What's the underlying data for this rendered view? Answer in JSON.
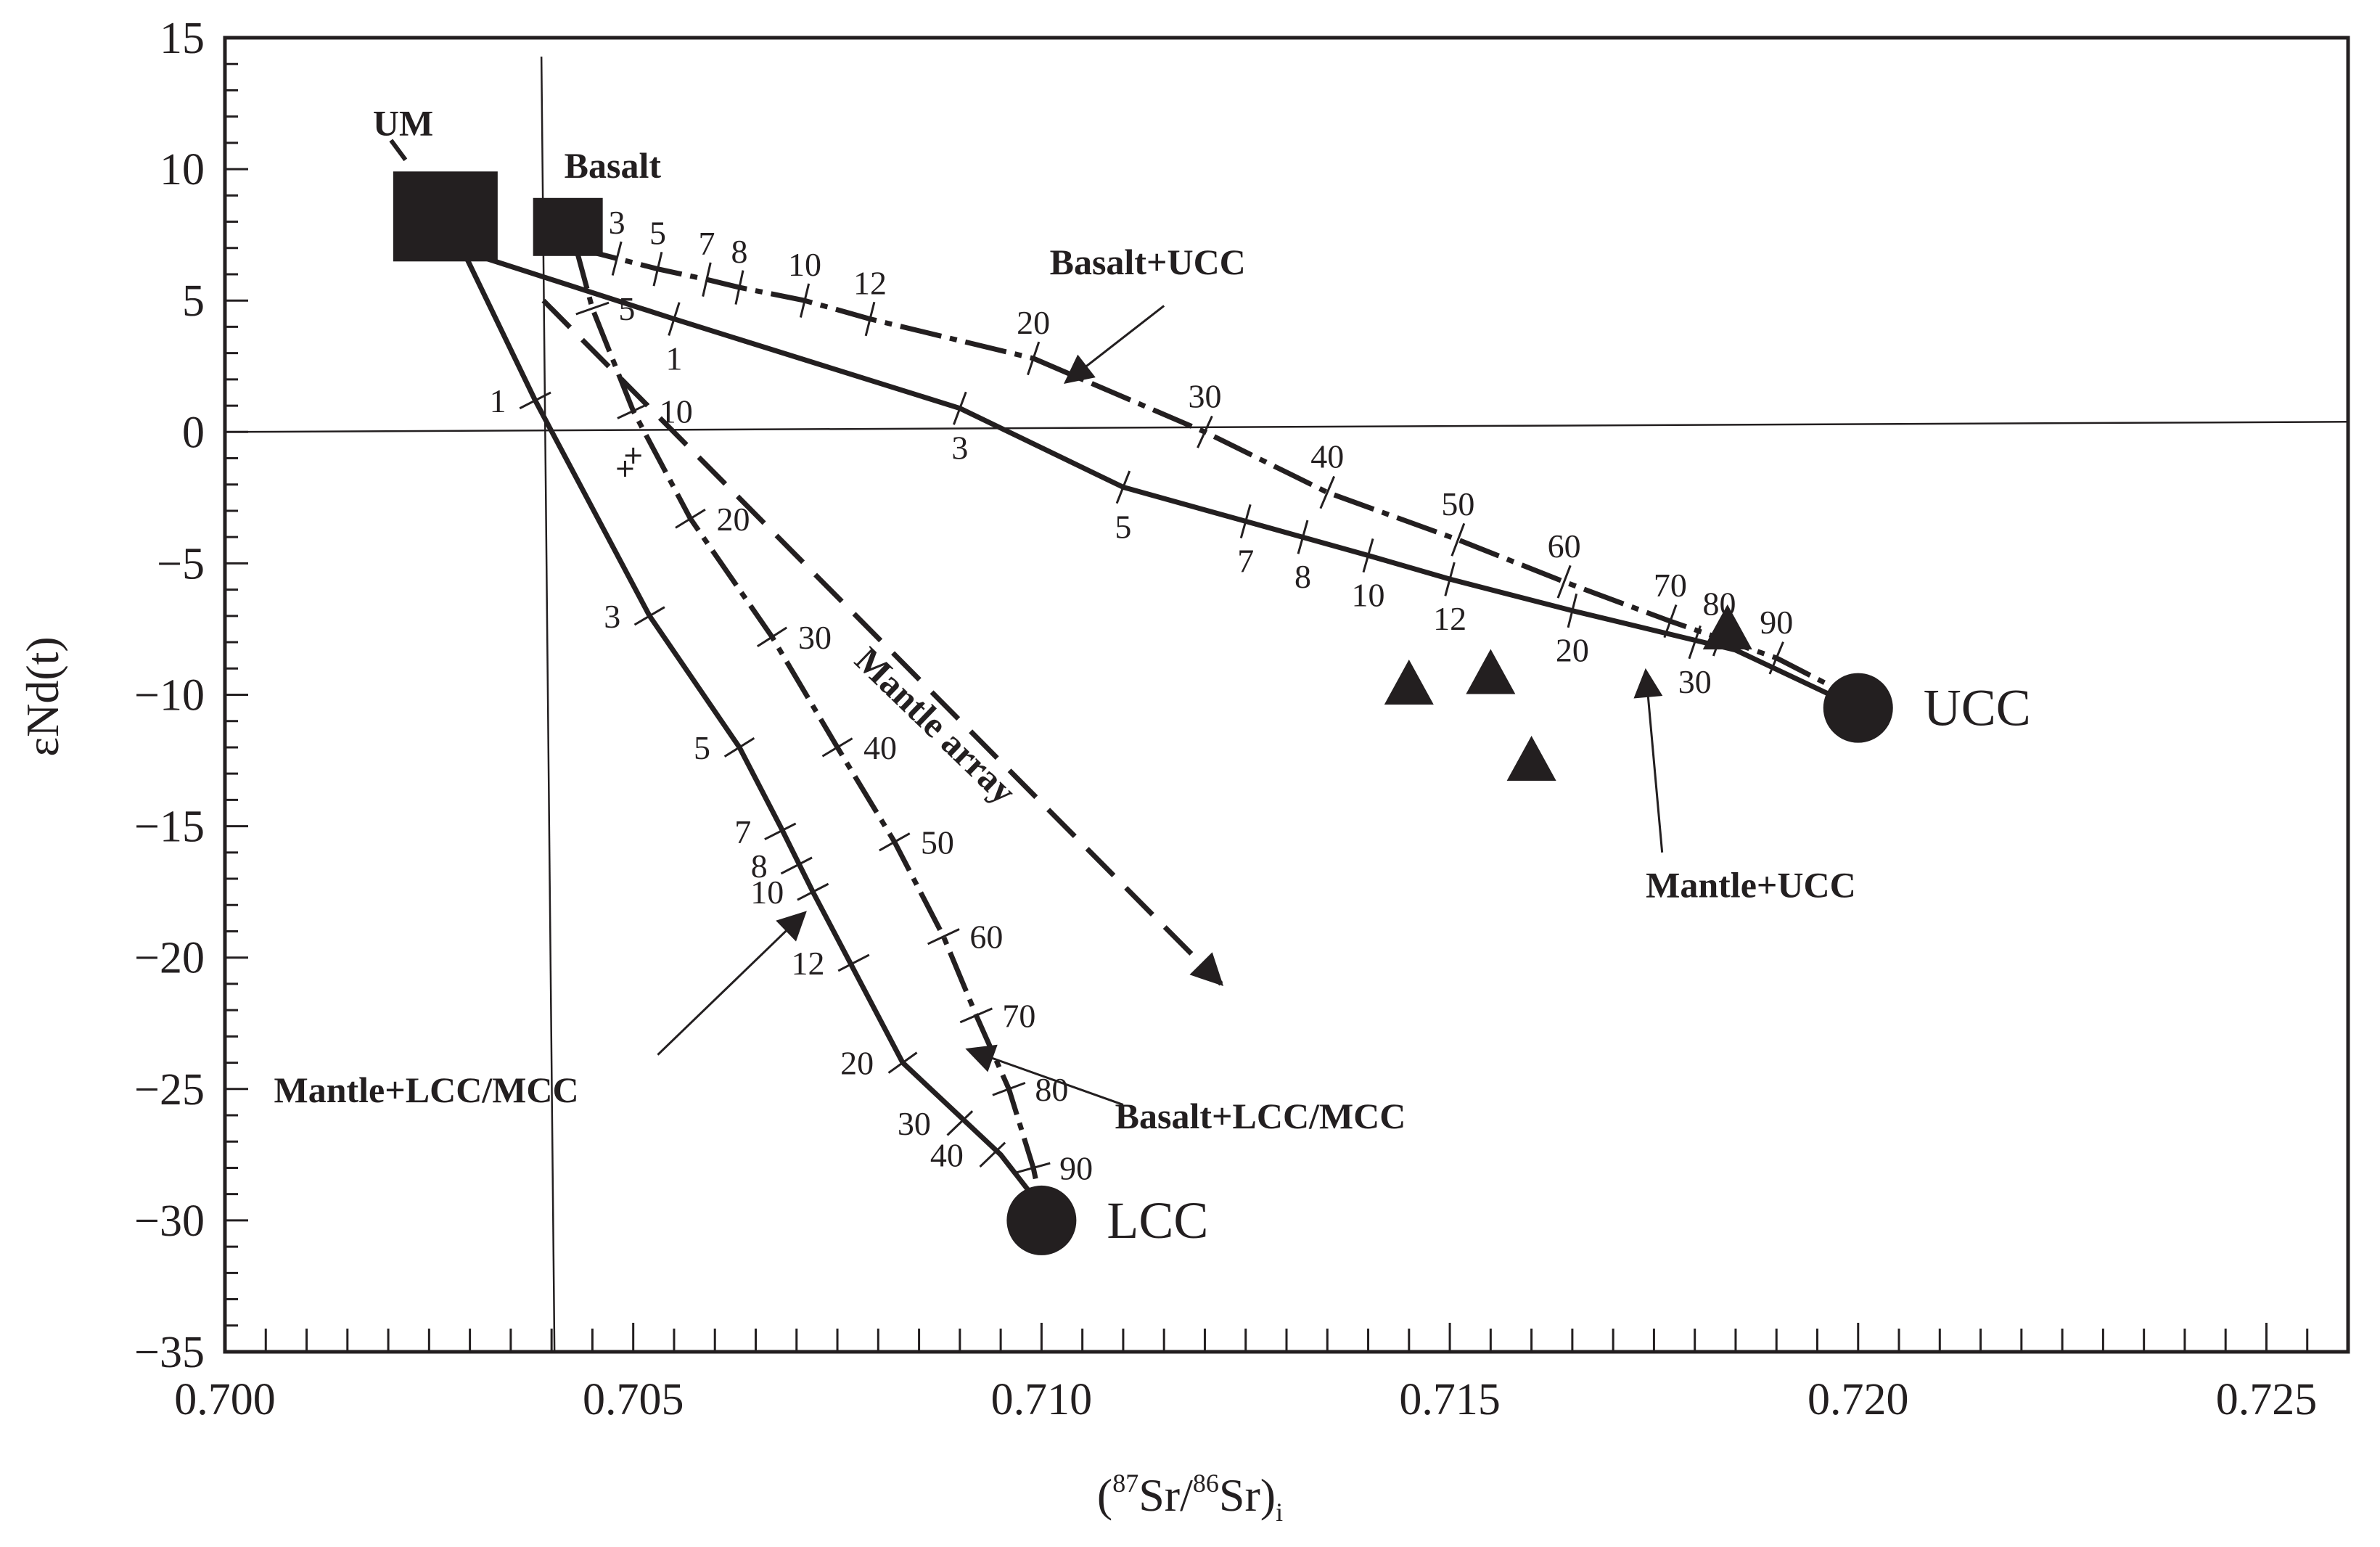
{
  "chart_data": {
    "type": "scatter",
    "title": "",
    "xlabel": "(87Sr/86Sr)i",
    "xlabel_parts": {
      "open": "(",
      "sup1": "87",
      "mid": "Sr/",
      "sup2": "86",
      "tail": "Sr)",
      "sub": "i"
    },
    "ylabel": "εNd(t)",
    "xlim": [
      0.7,
      0.726
    ],
    "ylim": [
      -35,
      15
    ],
    "x_ticks": [
      "0.700",
      "0.705",
      "0.710",
      "0.715",
      "0.720",
      "0.725"
    ],
    "x_tick_values": [
      0.7,
      0.705,
      0.71,
      0.715,
      0.72,
      0.725
    ],
    "y_ticks": [
      "15",
      "10",
      "5",
      "0",
      "−5",
      "−10",
      "−15",
      "−20",
      "−25",
      "−30",
      "−35"
    ],
    "y_tick_values": [
      15,
      10,
      5,
      0,
      -5,
      -10,
      -15,
      -20,
      -25,
      -30,
      -35
    ],
    "reference_lines": {
      "x": 0.704,
      "y": 0
    },
    "end_members": [
      {
        "name": "UM",
        "label": "UM",
        "x": 0.7027,
        "y": 8.2,
        "shape": "square-large"
      },
      {
        "name": "Basalt",
        "label": "Basalt",
        "x": 0.7042,
        "y": 7.8,
        "shape": "square"
      },
      {
        "name": "UCC",
        "label": "UCC",
        "x": 0.72,
        "y": -10.5,
        "shape": "circle"
      },
      {
        "name": "LCC",
        "label": "LCC",
        "x": 0.71,
        "y": -30.0,
        "shape": "circle"
      }
    ],
    "samples": {
      "triangles": [
        {
          "x": 0.7145,
          "y": -9.6
        },
        {
          "x": 0.7155,
          "y": -9.2
        },
        {
          "x": 0.716,
          "y": -12.5
        },
        {
          "x": 0.7184,
          "y": -7.5
        }
      ],
      "crosses": [
        {
          "x": 0.7049,
          "y": -1.4
        },
        {
          "x": 0.705,
          "y": -0.9
        }
      ]
    },
    "mixing_curves": [
      {
        "name": "Basalt+UCC",
        "label": "Basalt+UCC",
        "style": "dashed",
        "points": [
          [
            0.7043,
            7.0
          ],
          [
            0.7048,
            6.6
          ],
          [
            0.7053,
            6.2
          ],
          [
            0.7059,
            5.8
          ],
          [
            0.7063,
            5.5
          ],
          [
            0.7071,
            5.0
          ],
          [
            0.7079,
            4.3
          ],
          [
            0.7099,
            2.8
          ],
          [
            0.712,
            0.0
          ],
          [
            0.7135,
            -2.3
          ],
          [
            0.7151,
            -4.1
          ],
          [
            0.7164,
            -5.7
          ],
          [
            0.7177,
            -7.2
          ],
          [
            0.719,
            -8.6
          ],
          [
            0.72,
            -10.2
          ]
        ],
        "ticks": [
          {
            "label": "3",
            "x": 0.7048,
            "y": 6.6
          },
          {
            "label": "5",
            "x": 0.7053,
            "y": 6.2
          },
          {
            "label": "7",
            "x": 0.7059,
            "y": 5.8
          },
          {
            "label": "8",
            "x": 0.7063,
            "y": 5.5
          },
          {
            "label": "10",
            "x": 0.7071,
            "y": 5.0
          },
          {
            "label": "12",
            "x": 0.7079,
            "y": 4.3
          },
          {
            "label": "20",
            "x": 0.7099,
            "y": 2.8
          },
          {
            "label": "30",
            "x": 0.712,
            "y": 0.0
          },
          {
            "label": "40",
            "x": 0.7135,
            "y": -2.3
          },
          {
            "label": "50",
            "x": 0.7151,
            "y": -4.1
          },
          {
            "label": "60",
            "x": 0.7164,
            "y": -5.7
          },
          {
            "label": "70",
            "x": 0.7177,
            "y": -7.2
          },
          {
            "label": "80",
            "x": 0.7183,
            "y": -7.9
          },
          {
            "label": "90",
            "x": 0.719,
            "y": -8.6
          }
        ]
      },
      {
        "name": "Mantle+UCC",
        "label": "Mantle+UCC",
        "style": "solid",
        "points": [
          [
            0.703,
            6.8
          ],
          [
            0.7055,
            4.3
          ],
          [
            0.709,
            0.9
          ],
          [
            0.711,
            -2.1
          ],
          [
            0.7125,
            -3.4
          ],
          [
            0.714,
            -4.7
          ],
          [
            0.715,
            -5.6
          ],
          [
            0.7165,
            -6.8
          ],
          [
            0.7185,
            -8.3
          ],
          [
            0.72,
            -10.5
          ]
        ],
        "ticks": [
          {
            "label": "1",
            "x": 0.7055,
            "y": 4.3
          },
          {
            "label": "3",
            "x": 0.709,
            "y": 0.9
          },
          {
            "label": "5",
            "x": 0.711,
            "y": -2.1
          },
          {
            "label": "7",
            "x": 0.7125,
            "y": -3.4
          },
          {
            "label": "8",
            "x": 0.7132,
            "y": -4.0
          },
          {
            "label": "10",
            "x": 0.714,
            "y": -4.7
          },
          {
            "label": "12",
            "x": 0.715,
            "y": -5.6
          },
          {
            "label": "20",
            "x": 0.7165,
            "y": -6.8
          },
          {
            "label": "30",
            "x": 0.718,
            "y": -8.0
          }
        ]
      },
      {
        "name": "Mantle+LCC/MCC",
        "label": "Mantle+LCC/MCC",
        "style": "solid",
        "points": [
          [
            0.7029,
            7.0
          ],
          [
            0.7038,
            1.2
          ],
          [
            0.7052,
            -7.0
          ],
          [
            0.7063,
            -12.0
          ],
          [
            0.7068,
            -15.0
          ],
          [
            0.7072,
            -17.5
          ],
          [
            0.7083,
            -24.0
          ],
          [
            0.7095,
            -27.5
          ],
          [
            0.71,
            -29.5
          ]
        ],
        "ticks": [
          {
            "label": "1",
            "x": 0.7038,
            "y": 1.2
          },
          {
            "label": "3",
            "x": 0.7052,
            "y": -7.0
          },
          {
            "label": "5",
            "x": 0.7063,
            "y": -12.0
          },
          {
            "label": "7",
            "x": 0.7068,
            "y": -15.2
          },
          {
            "label": "8",
            "x": 0.707,
            "y": -16.5
          },
          {
            "label": "10",
            "x": 0.7072,
            "y": -17.5
          },
          {
            "label": "12",
            "x": 0.7077,
            "y": -20.2
          },
          {
            "label": "20",
            "x": 0.7083,
            "y": -24.0
          },
          {
            "label": "30",
            "x": 0.709,
            "y": -26.3
          },
          {
            "label": "40",
            "x": 0.7094,
            "y": -27.5
          }
        ]
      },
      {
        "name": "Basalt+LCC/MCC",
        "label": "Basalt+LCC/MCC",
        "style": "dashed",
        "points": [
          [
            0.7043,
            7.0
          ],
          [
            0.7045,
            4.7
          ],
          [
            0.705,
            0.8
          ],
          [
            0.7057,
            -3.3
          ],
          [
            0.7067,
            -7.8
          ],
          [
            0.7075,
            -12.0
          ],
          [
            0.7082,
            -15.6
          ],
          [
            0.7088,
            -19.2
          ],
          [
            0.7092,
            -22.2
          ],
          [
            0.7096,
            -25.0
          ],
          [
            0.7099,
            -28.0
          ],
          [
            0.71,
            -29.5
          ]
        ],
        "ticks": [
          {
            "label": "5",
            "x": 0.7045,
            "y": 4.7
          },
          {
            "label": "10",
            "x": 0.705,
            "y": 0.8
          },
          {
            "label": "20",
            "x": 0.7057,
            "y": -3.3
          },
          {
            "label": "30",
            "x": 0.7067,
            "y": -7.8
          },
          {
            "label": "40",
            "x": 0.7075,
            "y": -12.0
          },
          {
            "label": "50",
            "x": 0.7082,
            "y": -15.6
          },
          {
            "label": "60",
            "x": 0.7088,
            "y": -19.2
          },
          {
            "label": "70",
            "x": 0.7092,
            "y": -22.2
          },
          {
            "label": "80",
            "x": 0.7096,
            "y": -25.0
          },
          {
            "label": "90",
            "x": 0.7099,
            "y": -28.0
          }
        ]
      }
    ],
    "mantle_array": {
      "label": "Mantle array",
      "from": [
        0.7039,
        5.0
      ],
      "to": [
        0.7122,
        -21.0
      ],
      "style": "dashed-arrow"
    },
    "annotation_arrows": [
      {
        "label": "Basalt+UCC",
        "label_at": [
          0.7101,
          6.0
        ],
        "from": [
          0.7115,
          4.8
        ],
        "to": [
          0.7103,
          1.9
        ]
      },
      {
        "label": "Mantle+UCC",
        "label_at": [
          0.7174,
          -17.7
        ],
        "from": [
          0.7176,
          -16.0
        ],
        "to": [
          0.7174,
          -9.1
        ]
      },
      {
        "label": "Mantle+LCC/MCC",
        "label_at": [
          0.7006,
          -25.5
        ],
        "from": [
          0.7053,
          -23.7
        ],
        "to": [
          0.7071,
          -18.3
        ]
      },
      {
        "label": "Basalt+LCC/MCC",
        "label_at": [
          0.7109,
          -26.5
        ],
        "from": [
          0.711,
          -25.6
        ],
        "to": [
          0.7091,
          -23.5
        ]
      }
    ]
  }
}
